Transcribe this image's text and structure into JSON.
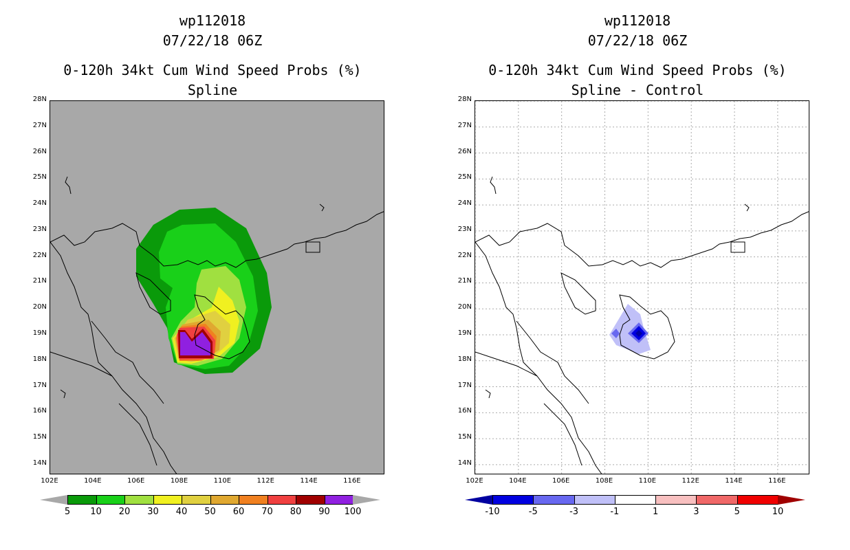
{
  "left": {
    "storm_id": "wp112018",
    "datetime": "07/22/18 06Z",
    "product": "0-120h 34kt Cum Wind Speed Probs (%)",
    "subtitle": "Spline",
    "background_color": "#a8a8a8",
    "colorbar": {
      "labels": [
        "5",
        "10",
        "20",
        "30",
        "40",
        "50",
        "60",
        "70",
        "80",
        "90",
        "100"
      ],
      "colors": [
        "#0a9a0a",
        "#19d019",
        "#a0e040",
        "#f0f020",
        "#e0d040",
        "#e0a830",
        "#f08020",
        "#f04040",
        "#a00000",
        "#9020e0"
      ],
      "under_color": "#a8a8a8",
      "over_color": "#a8a8a8"
    }
  },
  "right": {
    "storm_id": "wp112018",
    "datetime": "07/22/18 06Z",
    "product": "0-120h 34kt Cum Wind Speed Probs (%)",
    "subtitle": "Spline - Control",
    "background_color": "#ffffff",
    "colorbar": {
      "labels": [
        "-10",
        "-5",
        "-3",
        "-1",
        "1",
        "3",
        "5",
        "10"
      ],
      "colors": [
        "#0000e0",
        "#6868f0",
        "#c0c0f8",
        "#ffffff",
        "#f8c0c0",
        "#f06868",
        "#f00000"
      ],
      "under_color": "#0000a0",
      "over_color": "#a00000"
    }
  },
  "axes": {
    "lat_labels": [
      "28N",
      "27N",
      "26N",
      "25N",
      "24N",
      "23N",
      "22N",
      "21N",
      "20N",
      "19N",
      "18N",
      "17N",
      "16N",
      "15N",
      "14N"
    ],
    "lon_labels": [
      "102E",
      "104E",
      "106E",
      "108E",
      "110E",
      "112E",
      "114E",
      "116E"
    ],
    "lat_range": [
      13.6,
      28.0
    ],
    "lon_range": [
      102.0,
      117.5
    ]
  }
}
